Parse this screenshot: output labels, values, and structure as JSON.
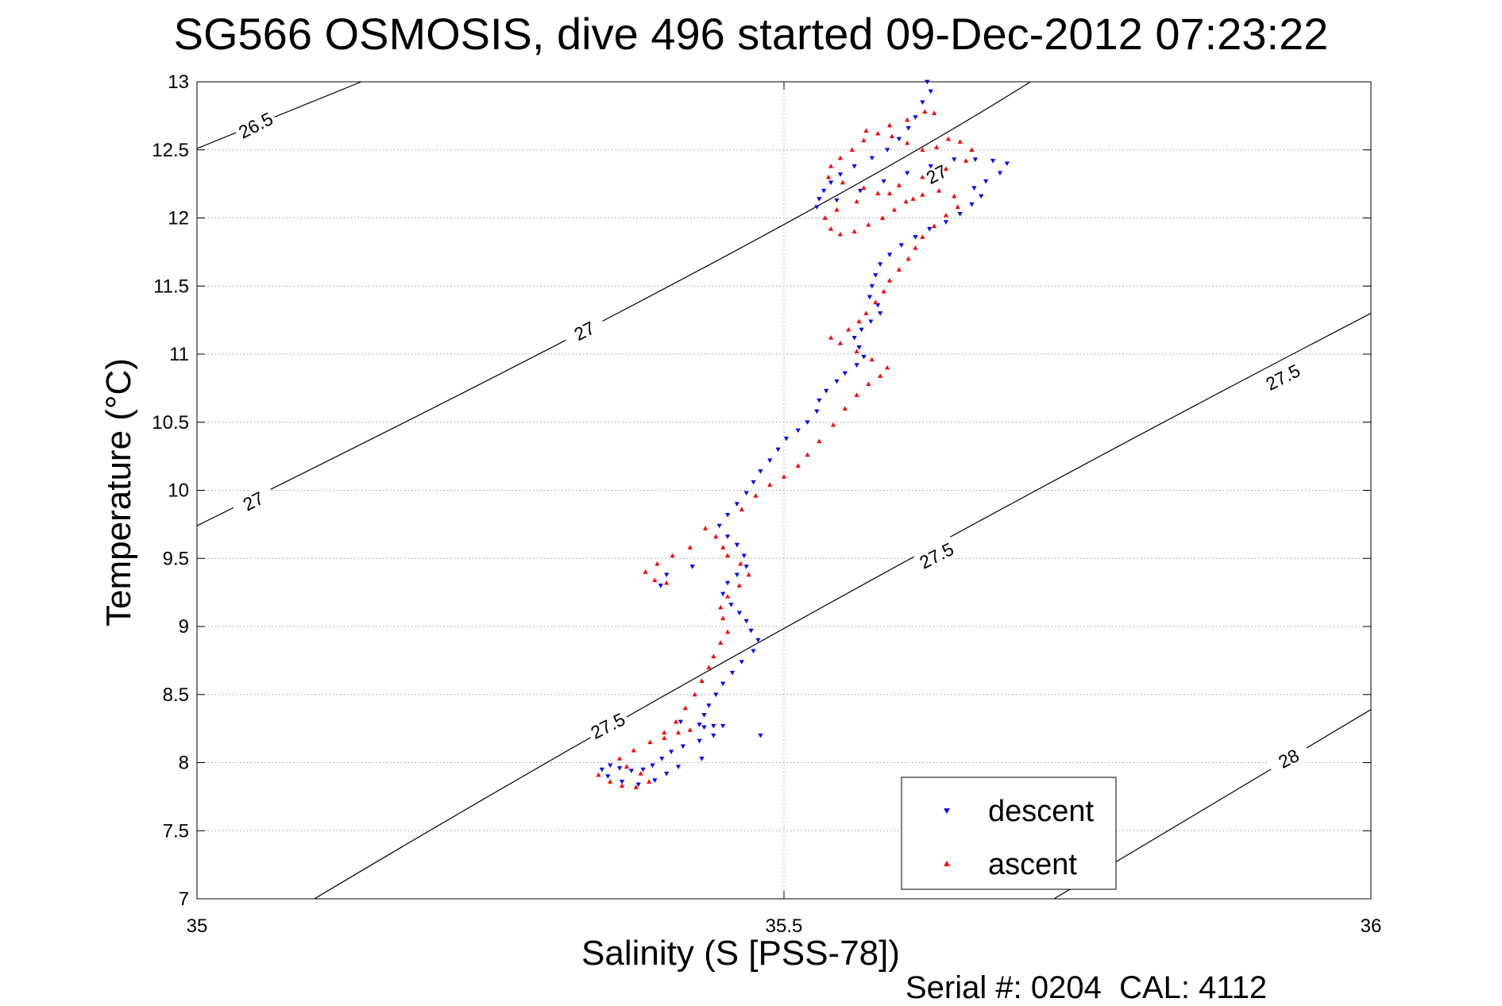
{
  "chart_data": {
    "type": "scatter",
    "title": "SG566 OSMOSIS, dive 496 started 09-Dec-2012 07:23:22",
    "xlabel": "Salinity (S [PSS-78])",
    "ylabel": "Temperature (°C)",
    "footer": "Serial #: 0204  CAL: 4112",
    "xlim": [
      35,
      36
    ],
    "ylim": [
      7,
      13
    ],
    "xticks": [
      "35",
      "35.5",
      "36"
    ],
    "yticks": [
      "7",
      "7.5",
      "8",
      "8.5",
      "9",
      "9.5",
      "10",
      "10.5",
      "11",
      "11.5",
      "12",
      "12.5",
      "13"
    ],
    "grid": true,
    "legend_position": "bottom-right",
    "series": [
      {
        "name": "descent",
        "color": "#0000ff",
        "marker": "triangle-down",
        "points": [
          [
            35.622,
            13.0
          ],
          [
            35.625,
            12.93
          ],
          [
            35.618,
            12.85
          ],
          [
            35.612,
            12.74
          ],
          [
            35.606,
            12.66
          ],
          [
            35.598,
            12.58
          ],
          [
            35.588,
            12.5
          ],
          [
            35.575,
            12.44
          ],
          [
            35.56,
            12.38
          ],
          [
            35.548,
            12.32
          ],
          [
            35.54,
            12.26
          ],
          [
            35.534,
            12.2
          ],
          [
            35.53,
            12.14
          ],
          [
            35.528,
            12.08
          ],
          [
            35.545,
            12.13
          ],
          [
            35.565,
            12.2
          ],
          [
            35.585,
            12.27
          ],
          [
            35.605,
            12.33
          ],
          [
            35.625,
            12.38
          ],
          [
            35.645,
            12.43
          ],
          [
            35.663,
            12.43
          ],
          [
            35.678,
            12.42
          ],
          [
            35.69,
            12.4
          ],
          [
            35.684,
            12.33
          ],
          [
            35.672,
            12.27
          ],
          [
            35.662,
            12.22
          ],
          [
            35.668,
            12.16
          ],
          [
            35.66,
            12.1
          ],
          [
            35.65,
            12.03
          ],
          [
            35.638,
            11.97
          ],
          [
            35.624,
            11.92
          ],
          [
            35.612,
            11.86
          ],
          [
            35.6,
            11.8
          ],
          [
            35.59,
            11.73
          ],
          [
            35.582,
            11.66
          ],
          [
            35.578,
            11.58
          ],
          [
            35.575,
            11.5
          ],
          [
            35.573,
            11.42
          ],
          [
            35.58,
            11.36
          ],
          [
            35.582,
            11.3
          ],
          [
            35.574,
            11.24
          ],
          [
            35.566,
            11.18
          ],
          [
            35.56,
            11.12
          ],
          [
            35.564,
            11.05
          ],
          [
            35.568,
            10.98
          ],
          [
            35.562,
            10.92
          ],
          [
            35.552,
            10.86
          ],
          [
            35.545,
            10.8
          ],
          [
            35.536,
            10.73
          ],
          [
            35.53,
            10.66
          ],
          [
            35.528,
            10.58
          ],
          [
            35.52,
            10.5
          ],
          [
            35.512,
            10.44
          ],
          [
            35.502,
            10.38
          ],
          [
            35.495,
            10.3
          ],
          [
            35.488,
            10.22
          ],
          [
            35.48,
            10.14
          ],
          [
            35.474,
            10.06
          ],
          [
            35.468,
            9.98
          ],
          [
            35.46,
            9.9
          ],
          [
            35.452,
            9.82
          ],
          [
            35.445,
            9.74
          ],
          [
            35.452,
            9.66
          ],
          [
            35.46,
            9.6
          ],
          [
            35.466,
            9.52
          ],
          [
            35.468,
            9.44
          ],
          [
            35.46,
            9.38
          ],
          [
            35.452,
            9.32
          ],
          [
            35.448,
            9.24
          ],
          [
            35.455,
            9.16
          ],
          [
            35.462,
            9.1
          ],
          [
            35.468,
            9.04
          ],
          [
            35.472,
            8.97
          ],
          [
            35.478,
            8.9
          ],
          [
            35.474,
            8.82
          ],
          [
            35.464,
            8.74
          ],
          [
            35.456,
            8.66
          ],
          [
            35.448,
            8.58
          ],
          [
            35.442,
            8.5
          ],
          [
            35.436,
            8.42
          ],
          [
            35.432,
            8.35
          ],
          [
            35.428,
            8.28
          ],
          [
            35.432,
            8.26
          ],
          [
            35.44,
            8.27
          ],
          [
            35.448,
            8.27
          ],
          [
            35.44,
            8.2
          ],
          [
            35.428,
            8.16
          ],
          [
            35.414,
            8.12
          ],
          [
            35.404,
            8.08
          ],
          [
            35.396,
            8.03
          ],
          [
            35.388,
            7.98
          ],
          [
            35.38,
            7.95
          ],
          [
            35.37,
            7.94
          ],
          [
            35.36,
            7.96
          ],
          [
            35.352,
            7.98
          ],
          [
            35.345,
            7.95
          ],
          [
            35.35,
            7.9
          ],
          [
            35.362,
            7.86
          ],
          [
            35.376,
            7.84
          ],
          [
            35.39,
            7.87
          ],
          [
            35.4,
            7.92
          ],
          [
            35.41,
            7.97
          ],
          [
            35.43,
            8.03
          ],
          [
            35.412,
            8.3
          ],
          [
            35.4,
            9.38
          ],
          [
            35.422,
            9.44
          ],
          [
            35.48,
            8.2
          ],
          [
            35.395,
            9.3
          ]
        ]
      },
      {
        "name": "ascent",
        "color": "#ff0000",
        "marker": "triangle-up",
        "points": [
          [
            35.342,
            7.91
          ],
          [
            35.352,
            7.86
          ],
          [
            35.362,
            7.83
          ],
          [
            35.374,
            7.82
          ],
          [
            35.385,
            7.86
          ],
          [
            35.378,
            7.92
          ],
          [
            35.366,
            7.97
          ],
          [
            35.36,
            8.03
          ],
          [
            35.372,
            8.09
          ],
          [
            35.386,
            8.15
          ],
          [
            35.398,
            8.22
          ],
          [
            35.408,
            8.3
          ],
          [
            35.416,
            8.4
          ],
          [
            35.424,
            8.5
          ],
          [
            35.43,
            8.6
          ],
          [
            35.436,
            8.7
          ],
          [
            35.44,
            8.78
          ],
          [
            35.446,
            8.88
          ],
          [
            35.452,
            8.96
          ],
          [
            35.448,
            9.06
          ],
          [
            35.446,
            9.14
          ],
          [
            35.452,
            9.22
          ],
          [
            35.462,
            9.3
          ],
          [
            35.47,
            9.38
          ],
          [
            35.463,
            9.46
          ],
          [
            35.452,
            9.52
          ],
          [
            35.448,
            9.58
          ],
          [
            35.442,
            9.66
          ],
          [
            35.433,
            9.72
          ],
          [
            35.42,
            9.58
          ],
          [
            35.405,
            9.52
          ],
          [
            35.392,
            9.46
          ],
          [
            35.382,
            9.4
          ],
          [
            35.39,
            9.34
          ],
          [
            35.4,
            9.32
          ],
          [
            35.41,
            8.22
          ],
          [
            35.398,
            8.18
          ],
          [
            35.42,
            8.24
          ],
          [
            35.464,
            9.86
          ],
          [
            35.476,
            9.96
          ],
          [
            35.488,
            10.04
          ],
          [
            35.5,
            10.1
          ],
          [
            35.512,
            10.18
          ],
          [
            35.52,
            10.26
          ],
          [
            35.53,
            10.36
          ],
          [
            35.542,
            10.48
          ],
          [
            35.552,
            10.6
          ],
          [
            35.562,
            10.7
          ],
          [
            35.572,
            10.78
          ],
          [
            35.582,
            10.84
          ],
          [
            35.588,
            10.9
          ],
          [
            35.575,
            10.96
          ],
          [
            35.562,
            11.02
          ],
          [
            35.548,
            11.08
          ],
          [
            35.54,
            11.12
          ],
          [
            35.555,
            11.18
          ],
          [
            35.564,
            11.24
          ],
          [
            35.57,
            11.3
          ],
          [
            35.578,
            11.38
          ],
          [
            35.585,
            11.46
          ],
          [
            35.59,
            11.54
          ],
          [
            35.598,
            11.62
          ],
          [
            35.606,
            11.7
          ],
          [
            35.612,
            11.78
          ],
          [
            35.618,
            11.86
          ],
          [
            35.628,
            11.94
          ],
          [
            35.638,
            12.02
          ],
          [
            35.648,
            12.08
          ],
          [
            35.645,
            12.16
          ],
          [
            35.632,
            12.2
          ],
          [
            35.618,
            12.17
          ],
          [
            35.604,
            12.12
          ],
          [
            35.594,
            12.06
          ],
          [
            35.584,
            12.0
          ],
          [
            35.572,
            11.95
          ],
          [
            35.56,
            11.9
          ],
          [
            35.548,
            11.88
          ],
          [
            35.54,
            11.92
          ],
          [
            35.535,
            12.0
          ],
          [
            35.545,
            12.06
          ],
          [
            35.562,
            12.12
          ],
          [
            35.58,
            12.18
          ],
          [
            35.598,
            12.24
          ],
          [
            35.618,
            12.3
          ],
          [
            35.638,
            12.36
          ],
          [
            35.655,
            12.42
          ],
          [
            35.66,
            12.5
          ],
          [
            35.65,
            12.56
          ],
          [
            35.64,
            12.58
          ],
          [
            35.63,
            12.52
          ],
          [
            35.618,
            12.5
          ],
          [
            35.605,
            12.55
          ],
          [
            35.592,
            12.6
          ],
          [
            35.58,
            12.62
          ],
          [
            35.568,
            12.57
          ],
          [
            35.558,
            12.5
          ],
          [
            35.548,
            12.44
          ],
          [
            35.54,
            12.38
          ],
          [
            35.538,
            12.3
          ],
          [
            35.55,
            12.26
          ],
          [
            35.568,
            12.22
          ],
          [
            35.59,
            12.18
          ],
          [
            35.61,
            12.14
          ],
          [
            35.62,
            12.78
          ],
          [
            35.628,
            12.77
          ],
          [
            35.605,
            12.72
          ],
          [
            35.59,
            12.68
          ],
          [
            35.57,
            12.64
          ]
        ]
      }
    ],
    "isopycnals": [
      {
        "label": "26.5",
        "points": [
          [
            35.0,
            12.51
          ],
          [
            35.14,
            13.0
          ]
        ],
        "label_at": [
          35.05,
          12.68
        ]
      },
      {
        "label": "27",
        "points": [
          [
            35.0,
            9.74
          ],
          [
            35.5,
            11.86
          ],
          [
            35.71,
            13.0
          ]
        ],
        "label_at": [
          35.33,
          11.17
        ]
      },
      {
        "label": "27.5",
        "points": [
          [
            35.1,
            7.0
          ],
          [
            35.5,
            9.06
          ],
          [
            36.0,
            11.3
          ]
        ],
        "label_at": [
          35.62,
          9.52
        ]
      },
      {
        "label": "28",
        "points": [
          [
            35.73,
            7.0
          ],
          [
            36.0,
            8.39
          ]
        ],
        "label_at": [
          35.93,
          8.03
        ]
      }
    ],
    "isopycnal_labels": [
      {
        "text": "26.5",
        "at": [
          35.05,
          12.68
        ]
      },
      {
        "text": "27",
        "at": [
          35.33,
          11.17
        ]
      },
      {
        "text": "27",
        "at": [
          35.048,
          9.92
        ]
      },
      {
        "text": "27",
        "at": [
          35.63,
          12.32
        ]
      },
      {
        "text": "27.5",
        "at": [
          35.35,
          8.27
        ]
      },
      {
        "text": "27.5",
        "at": [
          35.63,
          9.52
        ]
      },
      {
        "text": "27.5",
        "at": [
          35.925,
          10.83
        ]
      },
      {
        "text": "28",
        "at": [
          35.93,
          8.03
        ]
      }
    ],
    "legend": [
      {
        "name": "descent",
        "color": "#0000ff",
        "marker": "triangle-down"
      },
      {
        "name": "ascent",
        "color": "#ff0000",
        "marker": "triangle-up"
      }
    ]
  }
}
